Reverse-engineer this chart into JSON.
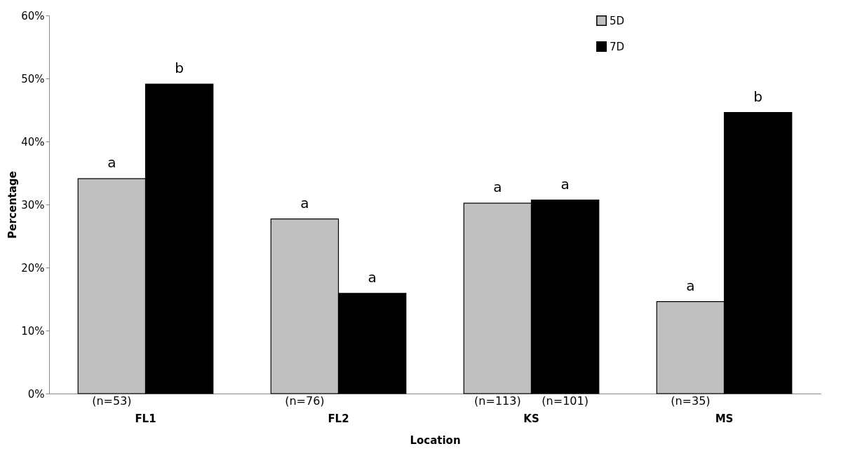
{
  "chart_data": {
    "type": "bar",
    "xlabel": "Location",
    "ylabel": "Percentage",
    "categories": [
      "FL1",
      "FL2",
      "KS",
      "MS"
    ],
    "series": [
      {
        "name": "5D",
        "color": "#c0c0c0",
        "values": [
          34.1,
          27.7,
          30.2,
          14.6
        ],
        "value_labels": [
          "a",
          "a",
          "a",
          "a"
        ]
      },
      {
        "name": "7D",
        "color": "#000000",
        "values": [
          49.1,
          15.9,
          30.7,
          44.6
        ],
        "value_labels": [
          "b",
          "a",
          "a",
          "b"
        ]
      }
    ],
    "ylim": [
      0,
      60
    ],
    "yticks": [
      {
        "value": 0,
        "label": "0%"
      },
      {
        "value": 10,
        "label": "10%"
      },
      {
        "value": 20,
        "label": "20%"
      },
      {
        "value": 30,
        "label": "30%"
      },
      {
        "value": 40,
        "label": "40%"
      },
      {
        "value": 50,
        "label": "50%"
      },
      {
        "value": 60,
        "label": "60%"
      }
    ],
    "annotations": [
      {
        "text": "(n=53)",
        "x": "FL1",
        "y": 0
      },
      {
        "text": "(n=76)",
        "x": "FL2",
        "y": 0
      },
      {
        "text": "(n=113)",
        "x": "KS",
        "y": 0
      },
      {
        "text": "(n=101)",
        "x": "KS",
        "y": 0
      },
      {
        "text": "(n=35)",
        "x": "MS",
        "y": 0
      }
    ],
    "grid": false,
    "legend": "top right"
  }
}
